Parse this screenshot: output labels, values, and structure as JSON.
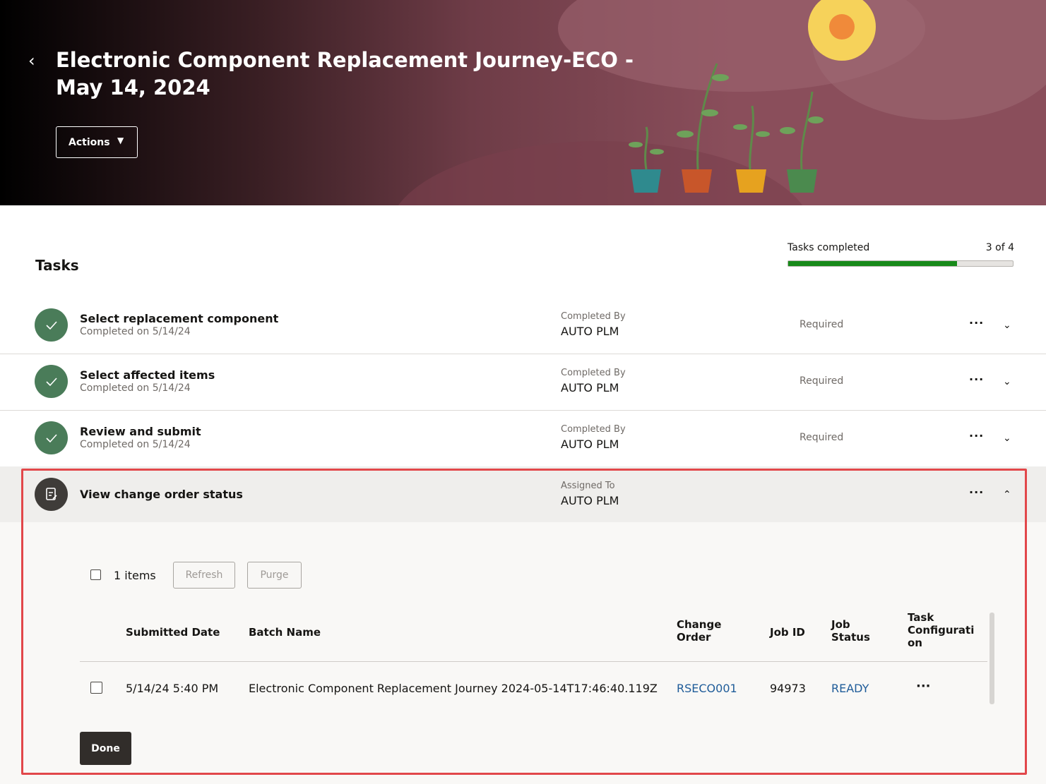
{
  "header": {
    "title_lines": [
      "Electronic Component Replacement Journey-ECO -",
      "May 14, 2024"
    ],
    "actions": "Actions"
  },
  "progress": {
    "label": "Tasks completed",
    "count": "3 of 4",
    "completed": 3,
    "total": 4
  },
  "tasks_title": "Tasks",
  "tasks": [
    {
      "name": "Select replacement component",
      "status": "Completed on 5/14/24",
      "person_label": "Completed By",
      "person": "AUTO PLM",
      "required": "Required"
    },
    {
      "name": "Select affected items",
      "status": "Completed on 5/14/24",
      "person_label": "Completed By",
      "person": "AUTO PLM",
      "required": "Required"
    },
    {
      "name": "Review and submit",
      "status": "Completed on 5/14/24",
      "person_label": "Completed By",
      "person": "AUTO PLM",
      "required": "Required"
    },
    {
      "name": "View change order status",
      "person_label": "Assigned To",
      "person": "AUTO PLM"
    }
  ],
  "detail": {
    "items": "1 items",
    "refresh": "Refresh",
    "purge": "Purge",
    "columns": [
      "Submitted Date",
      "Batch Name",
      "Change Order",
      "Job ID",
      "Job Status",
      "Task Configuration"
    ],
    "rows": [
      [
        "5/14/24 5:40 PM",
        "Electronic Component Replacement Journey 2024-05-14T17:46:40.119Z",
        "RSECO001",
        "94973",
        "READY"
      ]
    ],
    "done": "Done"
  }
}
